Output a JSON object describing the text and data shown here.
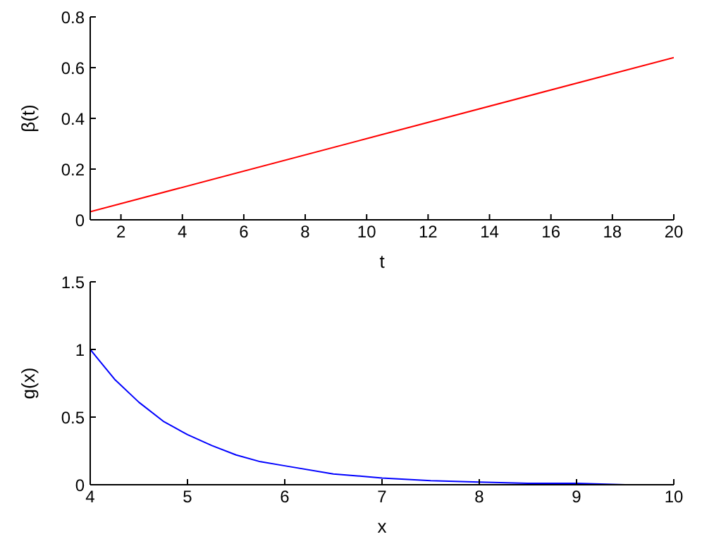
{
  "chart_data": [
    {
      "type": "line",
      "xlabel": "t",
      "ylabel": "β(t)",
      "xlim": [
        1,
        20
      ],
      "ylim": [
        0,
        0.8
      ],
      "xticks": [
        2,
        4,
        6,
        8,
        10,
        12,
        14,
        16,
        18,
        20
      ],
      "yticks": [
        0,
        0.2,
        0.4,
        0.6,
        0.8
      ],
      "series": [
        {
          "color": "#ff0000",
          "x": [
            1,
            10,
            20
          ],
          "values": [
            0.032,
            0.32,
            0.64
          ]
        }
      ]
    },
    {
      "type": "line",
      "xlabel": "x",
      "ylabel": "g(x)",
      "xlim": [
        4,
        10
      ],
      "ylim": [
        0,
        1.5
      ],
      "xticks": [
        4,
        5,
        6,
        7,
        8,
        9,
        10
      ],
      "yticks": [
        0,
        0.5,
        1,
        1.5
      ],
      "series": [
        {
          "color": "#0000ff",
          "x": [
            4,
            4.25,
            4.5,
            4.75,
            5,
            5.25,
            5.5,
            5.75,
            6,
            6.5,
            7,
            7.5,
            8,
            8.5,
            9,
            9.5,
            10
          ],
          "values": [
            1,
            0.78,
            0.61,
            0.47,
            0.37,
            0.29,
            0.22,
            0.17,
            0.14,
            0.08,
            0.05,
            0.03,
            0.02,
            0.01,
            0.01,
            0,
            0
          ]
        }
      ]
    }
  ]
}
